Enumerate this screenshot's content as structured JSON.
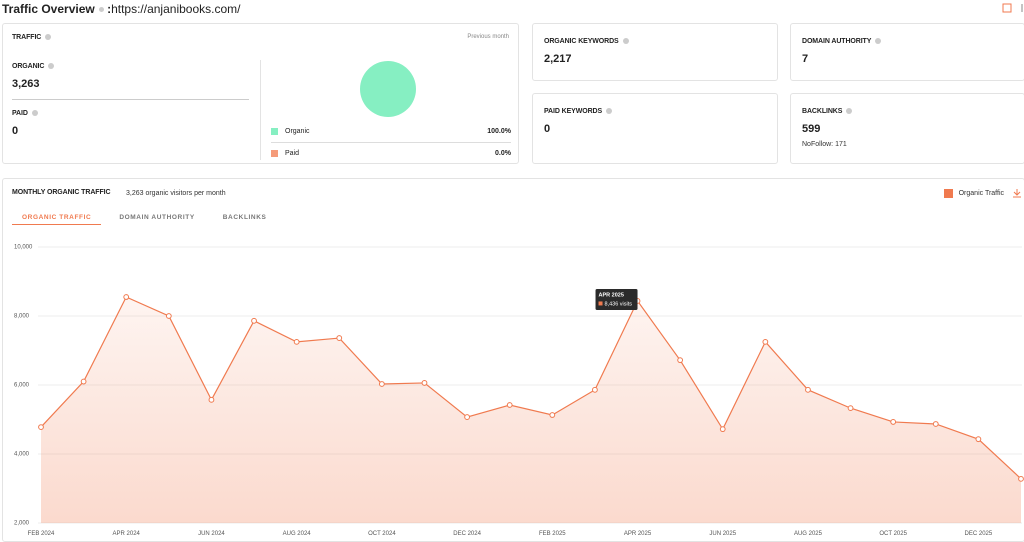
{
  "header": {
    "title": "Traffic Overview",
    "separator": ":",
    "url": "https://anjanibooks.com/"
  },
  "traffic": {
    "title": "TRAFFIC",
    "period": "Previous month",
    "organic_label": "ORGANIC",
    "organic_value": "3,263",
    "paid_label": "PAID",
    "paid_value": "0",
    "breakdown": [
      {
        "name": "Organic",
        "value": 100,
        "label": "100.0%",
        "color": "#86efc2"
      },
      {
        "name": "Paid",
        "value": 0,
        "label": "0.0%",
        "color": "#f59b7a"
      }
    ]
  },
  "cards": [
    {
      "title": "ORGANIC KEYWORDS",
      "value": "2,217"
    },
    {
      "title": "DOMAIN AUTHORITY",
      "value": "7"
    },
    {
      "title": "PAID KEYWORDS",
      "value": "0"
    },
    {
      "title": "BACKLINKS",
      "value": "599",
      "note": "NoFollow: 171"
    }
  ],
  "monthly": {
    "title": "MONTHLY ORGANIC TRAFFIC",
    "subtitle": "3,263 organic visitors per month",
    "tabs": [
      "ORGANIC TRAFFIC",
      "DOMAIN AUTHORITY",
      "BACKLINKS"
    ]
  },
  "chart_data": {
    "type": "line",
    "categories": [
      "FEB 2024",
      null,
      "APR 2024",
      null,
      "JUN 2024",
      null,
      "AUG 2024",
      null,
      "OCT 2024",
      null,
      "DEC 2024",
      null,
      "FEB 2025",
      null,
      "APR 2025",
      null,
      "JUN 2025",
      null,
      "AUG 2025",
      null,
      "OCT 2025",
      null,
      "DEC 2025",
      null
    ],
    "series": [
      {
        "name": "Organic Traffic",
        "color": "#f07a4f",
        "values": [
          4780,
          6100,
          8550,
          8000,
          5570,
          7860,
          7250,
          7360,
          6030,
          6060,
          5070,
          5420,
          5130,
          5860,
          8436,
          6720,
          4720,
          7250,
          5860,
          5330,
          4930,
          4870,
          4430,
          3280
        ]
      }
    ],
    "ylim": [
      2000,
      10000
    ],
    "yticks": [
      {
        "value": 2000,
        "label": "2,000"
      },
      {
        "value": 4000,
        "label": "4,000"
      },
      {
        "value": 6000,
        "label": "6,000"
      },
      {
        "value": 8000,
        "label": "8,000"
      },
      {
        "value": 10000,
        "label": "10,000"
      }
    ],
    "grid": true,
    "tooltip": {
      "label": "8,436 visits"
    }
  }
}
